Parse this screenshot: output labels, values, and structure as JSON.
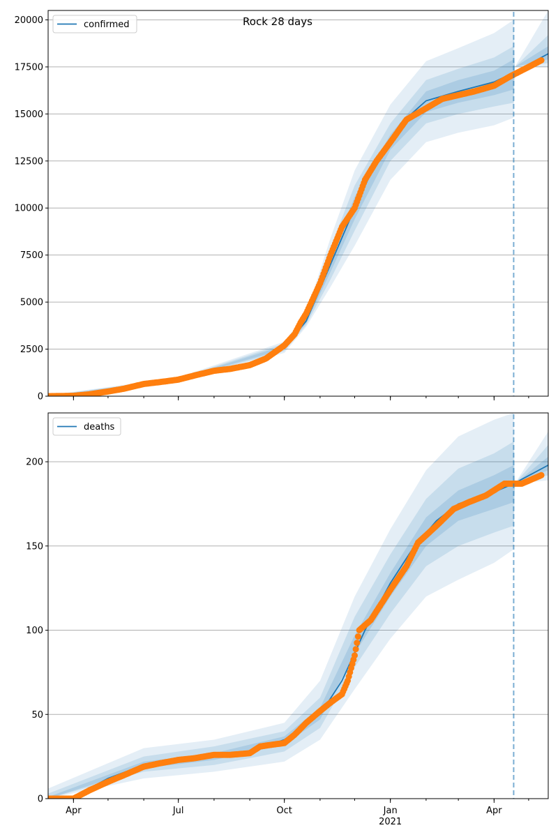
{
  "chart_data": [
    {
      "type": "line",
      "title": "Rock 28 days",
      "xlabel": "",
      "ylabel": "",
      "legend": "top-left",
      "legend_entries": [
        "confirmed"
      ],
      "grid": "y",
      "forecast_start": "2021-04-18",
      "xlim": [
        "2020-03-10",
        "2021-05-18"
      ],
      "ylim": [
        0,
        20500
      ],
      "x_ticks": [
        {
          "date": "2020-04-01",
          "label": "Apr"
        },
        {
          "date": "2020-07-01",
          "label": "Jul"
        },
        {
          "date": "2020-10-01",
          "label": "Oct"
        },
        {
          "date": "2021-01-01",
          "label": "Jan",
          "sublabel": "2021"
        },
        {
          "date": "2021-04-01",
          "label": "Apr"
        }
      ],
      "y_ticks": [
        0,
        2500,
        5000,
        7500,
        10000,
        12500,
        15000,
        17500,
        20000
      ],
      "series": [
        {
          "name": "confirmed",
          "kind": "model",
          "color": "#1f77b4",
          "points": [
            [
              "2020-03-10",
              0
            ],
            [
              "2020-04-01",
              20
            ],
            [
              "2020-05-01",
              200
            ],
            [
              "2020-06-01",
              700
            ],
            [
              "2020-07-01",
              900
            ],
            [
              "2020-08-01",
              1350
            ],
            [
              "2020-09-01",
              1650
            ],
            [
              "2020-10-01",
              2600
            ],
            [
              "2020-10-20",
              4000
            ],
            [
              "2020-11-10",
              7000
            ],
            [
              "2020-12-01",
              10000
            ],
            [
              "2020-12-20",
              12500
            ],
            [
              "2021-01-10",
              14500
            ],
            [
              "2021-02-01",
              15700
            ],
            [
              "2021-03-01",
              16200
            ],
            [
              "2021-04-01",
              16700
            ],
            [
              "2021-04-18",
              17200
            ],
            [
              "2021-05-18",
              18200
            ]
          ]
        },
        {
          "name": "",
          "kind": "observed",
          "color": "#ff7f0e",
          "points": [
            [
              "2020-03-10",
              0
            ],
            [
              "2020-04-01",
              20
            ],
            [
              "2020-04-15",
              100
            ],
            [
              "2020-05-01",
              250
            ],
            [
              "2020-05-15",
              400
            ],
            [
              "2020-06-01",
              650
            ],
            [
              "2020-06-15",
              750
            ],
            [
              "2020-07-01",
              880
            ],
            [
              "2020-07-15",
              1100
            ],
            [
              "2020-08-01",
              1350
            ],
            [
              "2020-08-15",
              1450
            ],
            [
              "2020-09-01",
              1650
            ],
            [
              "2020-09-15",
              2000
            ],
            [
              "2020-10-01",
              2700
            ],
            [
              "2020-10-10",
              3300
            ],
            [
              "2020-10-15",
              3900
            ],
            [
              "2020-10-20",
              4400
            ],
            [
              "2020-11-01",
              6000
            ],
            [
              "2020-11-10",
              7500
            ],
            [
              "2020-11-20",
              9000
            ],
            [
              "2020-12-01",
              10000
            ],
            [
              "2020-12-10",
              11500
            ],
            [
              "2020-12-20",
              12500
            ],
            [
              "2021-01-01",
              13500
            ],
            [
              "2021-01-15",
              14700
            ],
            [
              "2021-02-01",
              15300
            ],
            [
              "2021-02-15",
              15800
            ],
            [
              "2021-03-01",
              16000
            ],
            [
              "2021-03-15",
              16200
            ],
            [
              "2021-04-01",
              16500
            ],
            [
              "2021-04-15",
              17000
            ],
            [
              "2021-05-01",
              17500
            ],
            [
              "2021-05-12",
              17850
            ]
          ]
        }
      ],
      "bands": [
        {
          "level": "outer",
          "points": [
            [
              "2020-03-10",
              0,
              50
            ],
            [
              "2020-07-01",
              800,
              1000
            ],
            [
              "2020-10-01",
              2300,
              2900
            ],
            [
              "2020-10-20",
              3700,
              4400
            ],
            [
              "2020-11-10",
              5800,
              8400
            ],
            [
              "2020-12-01",
              8000,
              12000
            ],
            [
              "2021-01-01",
              11500,
              15500
            ],
            [
              "2021-02-01",
              13500,
              17800
            ],
            [
              "2021-03-01",
              14000,
              18500
            ],
            [
              "2021-04-01",
              14400,
              19300
            ],
            [
              "2021-04-18",
              14800,
              20000
            ],
            [
              "2021-04-19",
              17500,
              17500
            ],
            [
              "2021-05-18",
              17500,
              20500
            ]
          ]
        },
        {
          "level": "mid",
          "points": [
            [
              "2020-03-10",
              0,
              30
            ],
            [
              "2020-07-01",
              850,
              950
            ],
            [
              "2020-10-01",
              2400,
              2800
            ],
            [
              "2020-10-20",
              3800,
              4200
            ],
            [
              "2020-11-10",
              6200,
              7900
            ],
            [
              "2020-12-01",
              8800,
              11200
            ],
            [
              "2021-01-01",
              12500,
              14500
            ],
            [
              "2021-02-01",
              14500,
              16800
            ],
            [
              "2021-03-01",
              15000,
              17400
            ],
            [
              "2021-04-01",
              15400,
              18000
            ],
            [
              "2021-04-18",
              15600,
              18600
            ],
            [
              "2021-04-19",
              17500,
              17500
            ],
            [
              "2021-05-18",
              17700,
              19200
            ]
          ]
        },
        {
          "level": "inner",
          "points": [
            [
              "2020-03-10",
              0,
              15
            ],
            [
              "2020-07-01",
              880,
              920
            ],
            [
              "2020-10-01",
              2500,
              2700
            ],
            [
              "2020-10-20",
              3900,
              4100
            ],
            [
              "2020-11-10",
              6600,
              7400
            ],
            [
              "2020-12-01",
              9400,
              10600
            ],
            [
              "2021-01-01",
              13100,
              13900
            ],
            [
              "2021-02-01",
              15100,
              16200
            ],
            [
              "2021-03-01",
              15600,
              16800
            ],
            [
              "2021-04-01",
              16000,
              17300
            ],
            [
              "2021-04-18",
              16300,
              17900
            ],
            [
              "2021-04-19",
              17500,
              17500
            ],
            [
              "2021-05-18",
              17900,
              18600
            ]
          ]
        }
      ]
    },
    {
      "type": "line",
      "title": "",
      "xlabel": "",
      "ylabel": "",
      "legend": "top-left",
      "legend_entries": [
        "deaths"
      ],
      "grid": "y",
      "forecast_start": "2021-04-18",
      "xlim": [
        "2020-03-10",
        "2021-05-18"
      ],
      "ylim": [
        0,
        229
      ],
      "x_ticks": [
        {
          "date": "2020-04-01",
          "label": "Apr"
        },
        {
          "date": "2020-07-01",
          "label": "Jul"
        },
        {
          "date": "2020-10-01",
          "label": "Oct"
        },
        {
          "date": "2021-01-01",
          "label": "Jan",
          "sublabel": "2021"
        },
        {
          "date": "2021-04-01",
          "label": "Apr"
        }
      ],
      "y_ticks": [
        0,
        50,
        100,
        150,
        200
      ],
      "series": [
        {
          "name": "deaths",
          "kind": "model",
          "color": "#1f77b4",
          "points": [
            [
              "2020-03-10",
              0
            ],
            [
              "2020-04-01",
              1
            ],
            [
              "2020-05-01",
              12
            ],
            [
              "2020-06-01",
              20
            ],
            [
              "2020-07-01",
              23
            ],
            [
              "2020-08-01",
              25
            ],
            [
              "2020-09-01",
              28
            ],
            [
              "2020-10-01",
              35
            ],
            [
              "2020-11-01",
              50
            ],
            [
              "2020-11-20",
              70
            ],
            [
              "2020-12-10",
              100
            ],
            [
              "2021-01-01",
              128
            ],
            [
              "2021-01-20",
              148
            ],
            [
              "2021-02-10",
              165
            ],
            [
              "2021-03-01",
              175
            ],
            [
              "2021-04-01",
              182
            ],
            [
              "2021-04-18",
              187
            ],
            [
              "2021-05-18",
              198
            ]
          ]
        },
        {
          "name": "",
          "kind": "observed",
          "color": "#ff7f0e",
          "points": [
            [
              "2020-03-10",
              0
            ],
            [
              "2020-04-01",
              0
            ],
            [
              "2020-04-15",
              5
            ],
            [
              "2020-05-01",
              10
            ],
            [
              "2020-05-15",
              14
            ],
            [
              "2020-06-01",
              19
            ],
            [
              "2020-06-15",
              21
            ],
            [
              "2020-07-01",
              23
            ],
            [
              "2020-07-15",
              24
            ],
            [
              "2020-08-01",
              26
            ],
            [
              "2020-08-15",
              26
            ],
            [
              "2020-09-01",
              27
            ],
            [
              "2020-09-10",
              31
            ],
            [
              "2020-09-20",
              32
            ],
            [
              "2020-10-01",
              33
            ],
            [
              "2020-10-10",
              38
            ],
            [
              "2020-10-20",
              45
            ],
            [
              "2020-11-01",
              52
            ],
            [
              "2020-11-10",
              57
            ],
            [
              "2020-11-20",
              62
            ],
            [
              "2020-11-25",
              70
            ],
            [
              "2020-12-01",
              85
            ],
            [
              "2020-12-05",
              100
            ],
            [
              "2020-12-15",
              106
            ],
            [
              "2021-01-01",
              124
            ],
            [
              "2021-01-15",
              138
            ],
            [
              "2021-01-25",
              152
            ],
            [
              "2021-02-10",
              162
            ],
            [
              "2021-02-25",
              172
            ],
            [
              "2021-03-10",
              176
            ],
            [
              "2021-03-25",
              180
            ],
            [
              "2021-04-10",
              187
            ],
            [
              "2021-04-25",
              187
            ],
            [
              "2021-05-12",
              192
            ]
          ]
        }
      ],
      "bands": [
        {
          "level": "outer",
          "points": [
            [
              "2020-03-10",
              0,
              6
            ],
            [
              "2020-06-01",
              12,
              30
            ],
            [
              "2020-08-01",
              16,
              35
            ],
            [
              "2020-10-01",
              22,
              45
            ],
            [
              "2020-11-01",
              35,
              70
            ],
            [
              "2020-12-01",
              65,
              120
            ],
            [
              "2021-01-01",
              95,
              160
            ],
            [
              "2021-02-01",
              120,
              195
            ],
            [
              "2021-03-01",
              130,
              215
            ],
            [
              "2021-04-01",
              140,
              225
            ],
            [
              "2021-04-18",
              148,
              229
            ],
            [
              "2021-04-19",
              187,
              187
            ],
            [
              "2021-05-18",
              189,
              218
            ]
          ]
        },
        {
          "level": "mid",
          "points": [
            [
              "2020-03-10",
              0,
              3
            ],
            [
              "2020-06-01",
              16,
              25
            ],
            [
              "2020-08-01",
              20,
              31
            ],
            [
              "2020-10-01",
              28,
              40
            ],
            [
              "2020-11-01",
              42,
              60
            ],
            [
              "2020-12-01",
              78,
              108
            ],
            [
              "2021-01-01",
              110,
              145
            ],
            [
              "2021-02-01",
              138,
              178
            ],
            [
              "2021-03-01",
              150,
              196
            ],
            [
              "2021-04-01",
              158,
              205
            ],
            [
              "2021-04-18",
              162,
              212
            ],
            [
              "2021-04-19",
              187,
              187
            ],
            [
              "2021-05-18",
              192,
              210
            ]
          ]
        },
        {
          "level": "inner",
          "points": [
            [
              "2020-03-10",
              0,
              1
            ],
            [
              "2020-06-01",
              18,
              22
            ],
            [
              "2020-08-01",
              23,
              27
            ],
            [
              "2020-10-01",
              32,
              37
            ],
            [
              "2020-11-01",
              47,
              54
            ],
            [
              "2020-12-01",
              86,
              97
            ],
            [
              "2021-01-01",
              120,
              134
            ],
            [
              "2021-02-01",
              150,
              167
            ],
            [
              "2021-03-01",
              165,
              183
            ],
            [
              "2021-04-01",
              172,
              192
            ],
            [
              "2021-04-18",
              176,
              198
            ],
            [
              "2021-04-19",
              187,
              187
            ],
            [
              "2021-05-18",
              195,
              203
            ]
          ]
        }
      ]
    }
  ]
}
